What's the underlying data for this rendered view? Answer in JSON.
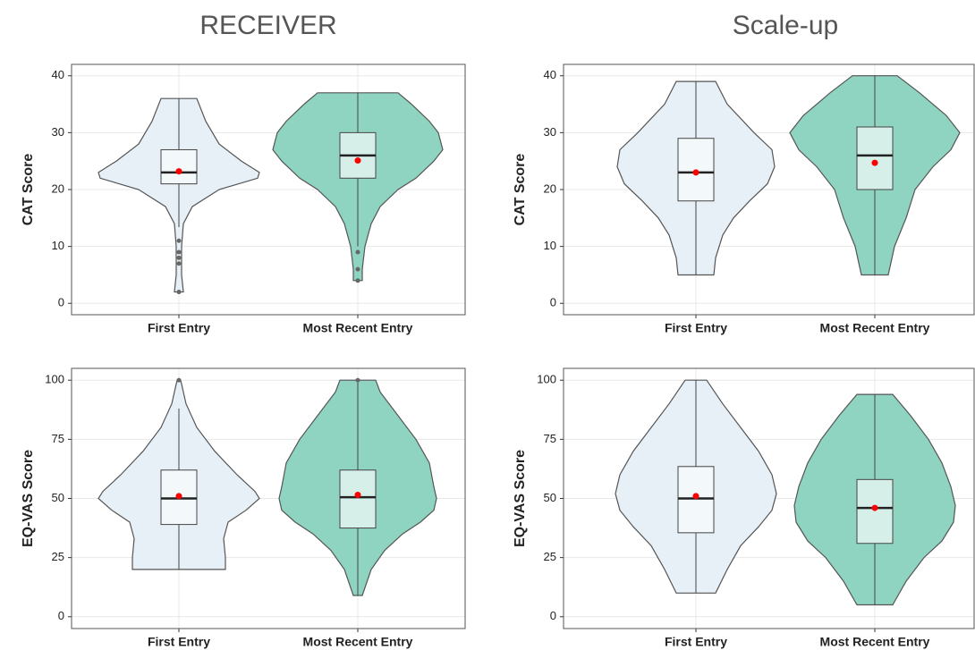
{
  "chart_data": [
    {
      "type": "violin",
      "title": "RECEIVER",
      "ylabel": "CAT Score",
      "categories": [
        "First Entry",
        "Most Recent Entry"
      ],
      "ylim": [
        -2,
        42
      ],
      "yticks": [
        0,
        10,
        20,
        30,
        40
      ],
      "grid": true,
      "groups": [
        {
          "color": "#e6f0f6",
          "box_color": "#f3f8fa",
          "violin": {
            "y": [
              2,
              5,
              10,
              14,
              17,
              20,
              22,
              23,
              25,
              28,
              32,
              36
            ],
            "density": [
              0.05,
              0.03,
              0.03,
              0.05,
              0.15,
              0.45,
              0.88,
              0.9,
              0.7,
              0.45,
              0.3,
              0.2
            ]
          },
          "whisker_low": 13.4,
          "q1": 21,
          "median": 23,
          "q3": 27,
          "whisker_high": 36,
          "mean": 23.2,
          "outliers": [
            11,
            9,
            8,
            7,
            2
          ]
        },
        {
          "color": "#8fd3c1",
          "box_color": "#d6efe9",
          "violin": {
            "y": [
              4,
              6,
              10,
              14,
              17,
              20,
              22,
              25,
              27,
              30,
              32,
              35,
              37
            ],
            "density": [
              0.05,
              0.05,
              0.08,
              0.15,
              0.25,
              0.45,
              0.65,
              0.85,
              0.95,
              0.9,
              0.8,
              0.6,
              0.45
            ]
          },
          "whisker_low": 10,
          "q1": 22,
          "median": 26,
          "q3": 30,
          "whisker_high": 37,
          "mean": 25.1,
          "outliers": [
            9,
            6,
            4
          ]
        }
      ]
    },
    {
      "type": "violin",
      "title": "Scale-up",
      "ylabel": "CAT Score",
      "categories": [
        "First Entry",
        "Most Recent Entry"
      ],
      "ylim": [
        -2,
        42
      ],
      "yticks": [
        0,
        10,
        20,
        30,
        40
      ],
      "grid": true,
      "groups": [
        {
          "color": "#e6f0f6",
          "box_color": "#f3f8fa",
          "violin": {
            "y": [
              5,
              8,
              12,
              15,
              18,
              21,
              24,
              27,
              30,
              35,
              39
            ],
            "density": [
              0.2,
              0.22,
              0.3,
              0.42,
              0.6,
              0.8,
              0.88,
              0.85,
              0.65,
              0.35,
              0.22
            ]
          },
          "whisker_low": 5,
          "q1": 18,
          "median": 23,
          "q3": 29,
          "whisker_high": 39,
          "mean": 23,
          "outliers": []
        },
        {
          "color": "#8fd3c1",
          "box_color": "#d6efe9",
          "violin": {
            "y": [
              5,
              10,
              15,
              20,
              24,
              27,
              30,
              33,
              37,
              40
            ],
            "density": [
              0.15,
              0.22,
              0.35,
              0.45,
              0.65,
              0.85,
              0.95,
              0.8,
              0.5,
              0.25
            ]
          },
          "whisker_low": 5,
          "q1": 20,
          "median": 26,
          "q3": 31,
          "whisker_high": 40,
          "mean": 24.7,
          "outliers": []
        }
      ]
    },
    {
      "type": "violin",
      "ylabel": "EQ-VAS Score",
      "categories": [
        "First Entry",
        "Most Recent Entry"
      ],
      "ylim": [
        -5,
        105
      ],
      "yticks": [
        0,
        25,
        50,
        75,
        100
      ],
      "grid": true,
      "groups": [
        {
          "color": "#e6f0f6",
          "box_color": "#f3f8fa",
          "violin": {
            "y": [
              20,
              25,
              33,
              40,
              45,
              50,
              53,
              60,
              70,
              80,
              90,
              100
            ],
            "density": [
              0.52,
              0.52,
              0.5,
              0.55,
              0.75,
              0.9,
              0.85,
              0.65,
              0.4,
              0.2,
              0.08,
              0.02
            ]
          },
          "whisker_low": 20,
          "q1": 39,
          "median": 50,
          "q3": 62,
          "whisker_high": 88,
          "mean": 51,
          "outliers": [
            100
          ]
        },
        {
          "color": "#8fd3c1",
          "box_color": "#d6efe9",
          "violin": {
            "y": [
              9,
              20,
              28,
              35,
              40,
              45,
              50,
              55,
              65,
              75,
              85,
              95,
              100
            ],
            "density": [
              0.05,
              0.15,
              0.3,
              0.5,
              0.7,
              0.85,
              0.88,
              0.85,
              0.8,
              0.65,
              0.45,
              0.25,
              0.2
            ]
          },
          "whisker_low": 9,
          "q1": 37.5,
          "median": 50.5,
          "q3": 62,
          "whisker_high": 99,
          "mean": 51.5,
          "outliers": [
            100
          ]
        }
      ]
    },
    {
      "type": "violin",
      "ylabel": "EQ-VAS Score",
      "categories": [
        "First Entry",
        "Most Recent Entry"
      ],
      "ylim": [
        -5,
        105
      ],
      "yticks": [
        0,
        25,
        50,
        75,
        100
      ],
      "grid": true,
      "groups": [
        {
          "color": "#e6f0f6",
          "box_color": "#f3f8fa",
          "violin": {
            "y": [
              10,
              20,
              30,
              38,
              45,
              52,
              60,
              70,
              80,
              90,
              100
            ],
            "density": [
              0.22,
              0.35,
              0.5,
              0.7,
              0.85,
              0.9,
              0.85,
              0.7,
              0.5,
              0.3,
              0.12
            ]
          },
          "whisker_low": 10,
          "q1": 35.5,
          "median": 50,
          "q3": 63.5,
          "whisker_high": 100,
          "mean": 51,
          "outliers": []
        },
        {
          "color": "#8fd3c1",
          "box_color": "#d6efe9",
          "violin": {
            "y": [
              5,
              15,
              25,
              32,
              40,
              47,
              55,
              65,
              75,
              85,
              94
            ],
            "density": [
              0.2,
              0.35,
              0.55,
              0.75,
              0.88,
              0.9,
              0.85,
              0.75,
              0.6,
              0.4,
              0.2
            ]
          },
          "whisker_low": 5,
          "q1": 31,
          "median": 46,
          "q3": 58,
          "whisker_high": 94,
          "mean": 46,
          "outliers": []
        }
      ]
    }
  ]
}
